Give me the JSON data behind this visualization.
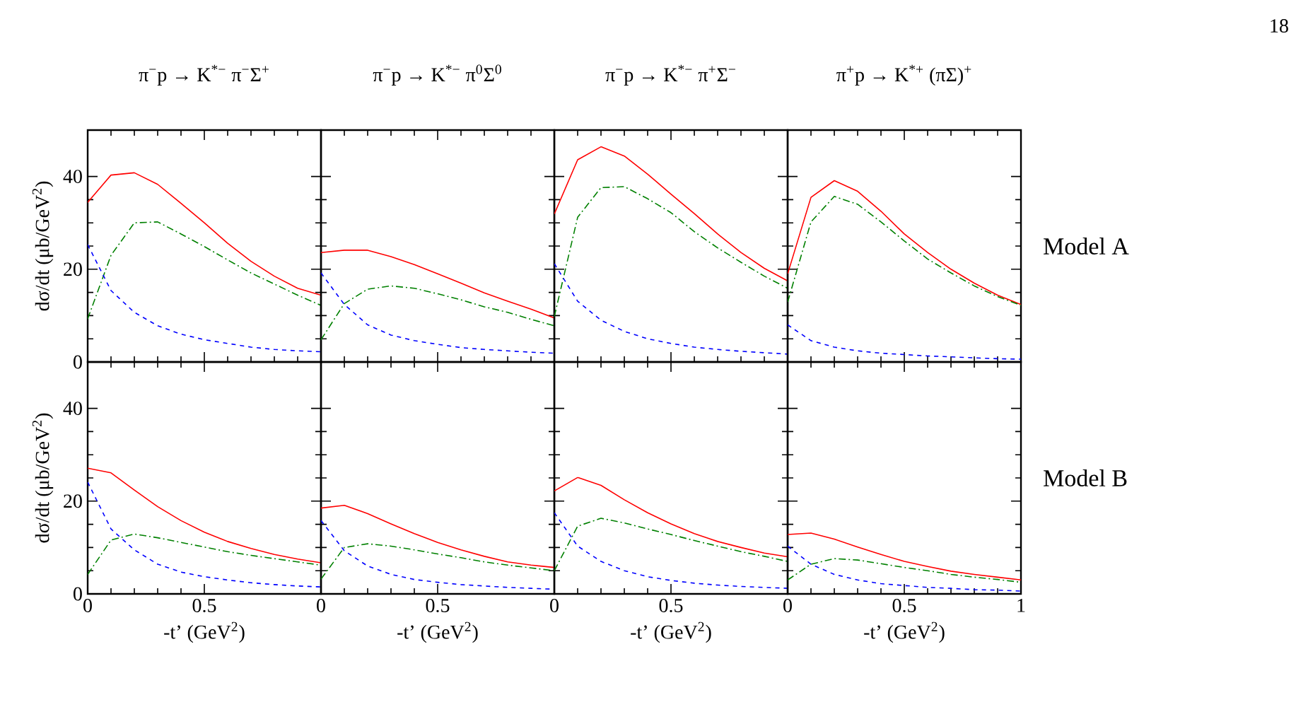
{
  "chart_data": [
    {
      "type": "line",
      "title": "π$^{−}$p → K$^{*−}$ π$^{−}$Σ$^{+}$",
      "ylabel": "dσ/dt (μb/GeV$^{2}$)",
      "annotations": [
        "18"
      ],
      "tick_labels": "y",
      "x": [
        0,
        0.1,
        0.2,
        0.3,
        0.4,
        0.5,
        0.6,
        0.7,
        0.8,
        0.9,
        1
      ],
      "xlim": [
        0,
        1
      ],
      "xticks": [
        0,
        0.5,
        1
      ],
      "ylim": [
        0,
        50
      ],
      "yticks": [
        0,
        20,
        40
      ],
      "series": [
        {
          "color": "#ff0000",
          "line_style": "solid",
          "values": [
            34.4,
            40.3,
            40.8,
            38.3,
            34.2,
            30,
            25.6,
            21.7,
            18.5,
            15.9,
            14.4
          ]
        },
        {
          "color": "#008000",
          "line_style": "dashdot",
          "values": [
            9.3,
            23,
            30,
            30.2,
            27.6,
            24.9,
            22,
            19.2,
            16.8,
            14.4,
            12.2
          ]
        },
        {
          "color": "#0000ff",
          "line_style": "dashed",
          "values": [
            25.3,
            15.4,
            10.7,
            7.8,
            6,
            4.8,
            4,
            3.2,
            2.7,
            2.4,
            2.2
          ]
        }
      ]
    },
    {
      "type": "line",
      "title": "π$^{−}$p → K$^{*−}$ π$^{0}$Σ$^{0}$",
      "tick_labels": false,
      "x": [
        0,
        0.1,
        0.2,
        0.3,
        0.4,
        0.5,
        0.6,
        0.7,
        0.8,
        0.9,
        1
      ],
      "xlim": [
        0,
        1
      ],
      "xticks": [
        0,
        0.5,
        1
      ],
      "ylim": [
        0,
        50
      ],
      "yticks": [
        0,
        20,
        40
      ],
      "series": [
        {
          "color": "#ff0000",
          "line_style": "solid",
          "values": [
            23.6,
            24.1,
            24.1,
            22.7,
            21,
            19,
            17,
            14.9,
            13.1,
            11.4,
            9.5
          ]
        },
        {
          "color": "#008000",
          "line_style": "dashdot",
          "values": [
            4.8,
            12.6,
            15.7,
            16.4,
            15.9,
            14.7,
            13.4,
            11.9,
            10.7,
            9.2,
            7.8
          ]
        },
        {
          "color": "#0000ff",
          "line_style": "dashed",
          "values": [
            19.2,
            12.4,
            8,
            5.8,
            4.6,
            3.8,
            3.1,
            2.7,
            2.4,
            2.1,
            1.9
          ]
        }
      ]
    },
    {
      "type": "line",
      "title": "π$^{−}$p → K$^{*−}$ π$^{+}$Σ$^{−}$",
      "tick_labels": false,
      "x": [
        0,
        0.1,
        0.2,
        0.3,
        0.4,
        0.5,
        0.6,
        0.7,
        0.8,
        0.9,
        1
      ],
      "xlim": [
        0,
        1
      ],
      "xticks": [
        0,
        0.5,
        1
      ],
      "ylim": [
        0,
        50
      ],
      "yticks": [
        0,
        20,
        40
      ],
      "series": [
        {
          "color": "#ff0000",
          "line_style": "solid",
          "values": [
            31.9,
            43.6,
            46.4,
            44.4,
            40.5,
            36.2,
            32,
            27.6,
            23.6,
            20.2,
            17.5
          ]
        },
        {
          "color": "#008000",
          "line_style": "dashdot",
          "values": [
            9.8,
            31.2,
            37.6,
            37.8,
            35.2,
            32.2,
            28.1,
            24.6,
            21.5,
            18.5,
            15.9
          ]
        },
        {
          "color": "#0000ff",
          "line_style": "dashed",
          "values": [
            21.2,
            13.1,
            9,
            6.6,
            5,
            4,
            3.2,
            2.7,
            2.3,
            2,
            1.7
          ]
        }
      ]
    },
    {
      "type": "line",
      "title": "π$^{+}$p → K$^{*+}$ (πΣ)$^{+}$",
      "annotations": [
        "Model A"
      ],
      "tick_labels": false,
      "x": [
        0,
        0.1,
        0.2,
        0.3,
        0.4,
        0.5,
        0.6,
        0.7,
        0.8,
        0.9,
        1
      ],
      "xlim": [
        0,
        1
      ],
      "xticks": [
        0,
        0.5,
        1
      ],
      "ylim": [
        0,
        50
      ],
      "yticks": [
        0,
        20,
        40
      ],
      "series": [
        {
          "color": "#ff0000",
          "line_style": "solid",
          "values": [
            19,
            35.5,
            39.1,
            36.8,
            32.5,
            27.6,
            23.6,
            20,
            17,
            14.4,
            12.4
          ]
        },
        {
          "color": "#008000",
          "line_style": "dashdot",
          "values": [
            12.9,
            30.2,
            35.7,
            34,
            30.2,
            26.1,
            22.2,
            19.2,
            16.4,
            14.1,
            12.2
          ]
        },
        {
          "color": "#0000ff",
          "line_style": "dashed",
          "values": [
            8,
            4.6,
            3.2,
            2.4,
            1.9,
            1.6,
            1.3,
            1.1,
            0.9,
            0.7,
            0.6
          ]
        }
      ]
    },
    {
      "type": "line",
      "ylabel": "dσ/dt (μb/GeV$^{2}$)",
      "xlabel": "-t’ (GeV$^{2}$)",
      "x": [
        0,
        0.1,
        0.2,
        0.3,
        0.4,
        0.5,
        0.6,
        0.7,
        0.8,
        0.9,
        1
      ],
      "xlim": [
        0,
        1
      ],
      "xticks": [
        0,
        0.5
      ],
      "ylim": [
        0,
        50
      ],
      "yticks": [
        0,
        20,
        40
      ],
      "series": [
        {
          "color": "#ff0000",
          "line_style": "solid",
          "values": [
            27.1,
            26.1,
            22.4,
            18.8,
            15.8,
            13.3,
            11.3,
            9.8,
            8.5,
            7.5,
            6.7
          ]
        },
        {
          "color": "#008000",
          "line_style": "dashdot",
          "values": [
            4.2,
            11.6,
            12.9,
            12.1,
            11.1,
            10.1,
            9.1,
            8.3,
            7.6,
            6.9,
            6.2
          ]
        },
        {
          "color": "#0000ff",
          "line_style": "dashed",
          "values": [
            24.1,
            14,
            9.5,
            6.4,
            4.7,
            3.7,
            3,
            2.4,
            2,
            1.7,
            1.5
          ]
        }
      ]
    },
    {
      "type": "line",
      "xlabel": "-t’ (GeV$^{2}$)",
      "tick_labels": "x",
      "x": [
        0,
        0.1,
        0.2,
        0.3,
        0.4,
        0.5,
        0.6,
        0.7,
        0.8,
        0.9,
        1
      ],
      "xlim": [
        0,
        1
      ],
      "xticks": [
        0,
        0.5
      ],
      "ylim": [
        0,
        50
      ],
      "yticks": [
        0,
        20,
        40
      ],
      "series": [
        {
          "color": "#ff0000",
          "line_style": "solid",
          "values": [
            18.5,
            19.1,
            17.3,
            15.1,
            13,
            11.1,
            9.5,
            8.1,
            6.9,
            6.2,
            5.7
          ]
        },
        {
          "color": "#008000",
          "line_style": "dashdot",
          "values": [
            3.2,
            10,
            10.8,
            10.3,
            9.5,
            8.6,
            7.8,
            6.9,
            6.2,
            5.6,
            5
          ]
        },
        {
          "color": "#0000ff",
          "line_style": "dashed",
          "values": [
            15.8,
            9.3,
            6,
            4.2,
            3.1,
            2.5,
            2,
            1.7,
            1.4,
            1.2,
            1
          ]
        }
      ]
    },
    {
      "type": "line",
      "xlabel": "-t’ (GeV$^{2}$)",
      "tick_labels": "x",
      "x": [
        0,
        0.1,
        0.2,
        0.3,
        0.4,
        0.5,
        0.6,
        0.7,
        0.8,
        0.9,
        1
      ],
      "xlim": [
        0,
        1
      ],
      "xticks": [
        0,
        0.5
      ],
      "ylim": [
        0,
        50
      ],
      "yticks": [
        0,
        20,
        40
      ],
      "series": [
        {
          "color": "#ff0000",
          "line_style": "solid",
          "values": [
            22.2,
            25.1,
            23.4,
            20.3,
            17.5,
            15.1,
            13,
            11.3,
            10,
            8.8,
            8
          ]
        },
        {
          "color": "#008000",
          "line_style": "dashdot",
          "values": [
            5,
            14.6,
            16.3,
            15.3,
            14,
            12.8,
            11.5,
            10.3,
            9.1,
            8.1,
            7
          ]
        },
        {
          "color": "#0000ff",
          "line_style": "dashed",
          "values": [
            17.5,
            10.3,
            7,
            5,
            3.7,
            2.9,
            2.3,
            1.9,
            1.6,
            1.4,
            1.2
          ]
        }
      ]
    },
    {
      "type": "line",
      "xlabel": "-t’ (GeV$^{2}$)",
      "annotations": [
        "Model B"
      ],
      "tick_labels": "x",
      "x": [
        0,
        0.1,
        0.2,
        0.3,
        0.4,
        0.5,
        0.6,
        0.7,
        0.8,
        0.9,
        1
      ],
      "xlim": [
        0,
        1
      ],
      "xticks": [
        0,
        0.5,
        1
      ],
      "ylim": [
        0,
        50
      ],
      "yticks": [
        0,
        20,
        40
      ],
      "series": [
        {
          "color": "#ff0000",
          "line_style": "solid",
          "values": [
            12.8,
            13.1,
            11.8,
            10.1,
            8.5,
            7,
            5.9,
            4.9,
            4.2,
            3.6,
            3
          ]
        },
        {
          "color": "#008000",
          "line_style": "dashdot",
          "values": [
            3,
            6.4,
            7.6,
            7.3,
            6.5,
            5.7,
            5,
            4.2,
            3.6,
            3.1,
            2.5
          ]
        },
        {
          "color": "#0000ff",
          "line_style": "dashed",
          "values": [
            10.3,
            6.4,
            4.2,
            3,
            2.2,
            1.8,
            1.4,
            1.2,
            0.9,
            0.8,
            0.6
          ]
        }
      ]
    }
  ]
}
